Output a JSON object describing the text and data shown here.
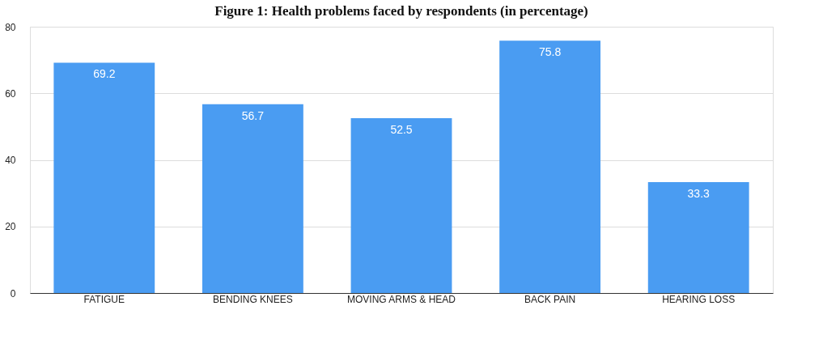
{
  "chart_data": {
    "type": "bar",
    "title": "Figure 1: Health problems faced by respondents (in percentage)",
    "categories": [
      "FATIGUE",
      "BENDING KNEES",
      "MOVING ARMS & HEAD",
      "BACK PAIN",
      "HEARING LOSS"
    ],
    "values": [
      69.2,
      56.7,
      52.5,
      75.8,
      33.3
    ],
    "color": "#4a9cf2",
    "ylim": [
      0,
      80
    ],
    "yticks": [
      0,
      20,
      40,
      60,
      80
    ],
    "grid": "y",
    "data_labels": true
  }
}
